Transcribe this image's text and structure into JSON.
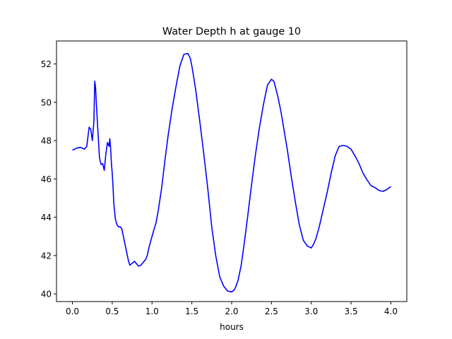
{
  "chart_data": {
    "type": "line",
    "title": "Water Depth h at gauge 10",
    "xlabel": "hours",
    "ylabel": "",
    "xlim": [
      -0.2,
      4.2
    ],
    "ylim": [
      39.6,
      53.2
    ],
    "xticks": [
      0.0,
      0.5,
      1.0,
      1.5,
      2.0,
      2.5,
      3.0,
      3.5,
      4.0
    ],
    "xtick_labels": [
      "0.0",
      "0.5",
      "1.0",
      "1.5",
      "2.0",
      "2.5",
      "3.0",
      "3.5",
      "4.0"
    ],
    "yticks": [
      40,
      42,
      44,
      46,
      48,
      50,
      52
    ],
    "ytick_labels": [
      "40",
      "42",
      "44",
      "46",
      "48",
      "50",
      "52"
    ],
    "grid": false,
    "series": [
      {
        "color": "#0000ff",
        "x": [
          0.0,
          0.05,
          0.1,
          0.15,
          0.18,
          0.21,
          0.23,
          0.25,
          0.27,
          0.28,
          0.29,
          0.3,
          0.32,
          0.34,
          0.36,
          0.38,
          0.4,
          0.42,
          0.44,
          0.46,
          0.47,
          0.48,
          0.49,
          0.5,
          0.51,
          0.52,
          0.54,
          0.56,
          0.58,
          0.6,
          0.62,
          0.65,
          0.68,
          0.7,
          0.72,
          0.75,
          0.78,
          0.8,
          0.83,
          0.86,
          0.88,
          0.9,
          0.92,
          0.94,
          0.96,
          0.98,
          1.0,
          1.02,
          1.05,
          1.08,
          1.12,
          1.16,
          1.2,
          1.25,
          1.3,
          1.35,
          1.4,
          1.45,
          1.48,
          1.5,
          1.52,
          1.55,
          1.6,
          1.65,
          1.7,
          1.75,
          1.8,
          1.85,
          1.9,
          1.95,
          2.0,
          2.03,
          2.05,
          2.08,
          2.12,
          2.16,
          2.2,
          2.25,
          2.3,
          2.35,
          2.4,
          2.45,
          2.5,
          2.53,
          2.55,
          2.58,
          2.62,
          2.66,
          2.7,
          2.75,
          2.8,
          2.85,
          2.9,
          2.95,
          3.0,
          3.03,
          3.06,
          3.1,
          3.15,
          3.2,
          3.25,
          3.3,
          3.35,
          3.4,
          3.45,
          3.5,
          3.55,
          3.6,
          3.65,
          3.7,
          3.75,
          3.8,
          3.85,
          3.9,
          3.95,
          4.0
        ],
        "y": [
          47.5,
          47.6,
          47.65,
          47.55,
          47.7,
          48.7,
          48.6,
          48.0,
          49.0,
          51.1,
          50.8,
          50.0,
          48.5,
          47.1,
          46.75,
          46.8,
          46.45,
          47.3,
          47.9,
          47.7,
          48.1,
          47.6,
          46.8,
          46.3,
          45.6,
          44.7,
          43.9,
          43.6,
          43.5,
          43.5,
          43.4,
          42.8,
          42.2,
          41.8,
          41.5,
          41.6,
          41.7,
          41.6,
          41.45,
          41.5,
          41.6,
          41.7,
          41.8,
          42.0,
          42.4,
          42.7,
          43.0,
          43.3,
          43.7,
          44.4,
          45.5,
          46.9,
          48.2,
          49.6,
          50.8,
          51.9,
          52.5,
          52.55,
          52.3,
          51.9,
          51.4,
          50.6,
          49.0,
          47.3,
          45.5,
          43.5,
          42.0,
          40.9,
          40.4,
          40.15,
          40.1,
          40.2,
          40.35,
          40.7,
          41.5,
          42.7,
          44.0,
          45.7,
          47.3,
          48.7,
          49.9,
          50.9,
          51.2,
          51.1,
          50.8,
          50.3,
          49.5,
          48.5,
          47.5,
          46.1,
          44.8,
          43.6,
          42.8,
          42.5,
          42.4,
          42.6,
          42.9,
          43.5,
          44.4,
          45.3,
          46.3,
          47.2,
          47.7,
          47.75,
          47.7,
          47.55,
          47.2,
          46.8,
          46.3,
          45.95,
          45.65,
          45.55,
          45.4,
          45.35,
          45.45,
          45.6
        ]
      }
    ]
  }
}
